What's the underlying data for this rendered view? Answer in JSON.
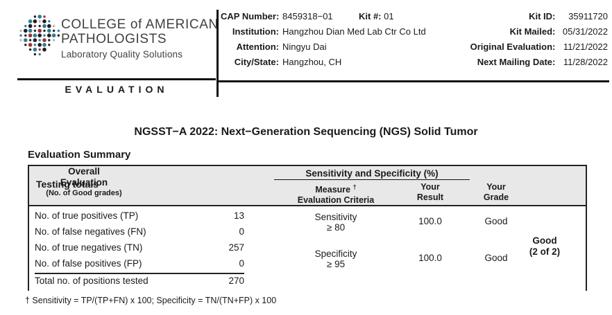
{
  "logo": {
    "icon": "cap-dots-logo",
    "org_line1": "COLLEGE of AMERICAN",
    "org_line2": "PATHOLOGISTS",
    "tagline": "Laboratory Quality Solutions"
  },
  "report_type": "EVALUATION",
  "header_info": {
    "left": [
      {
        "label": "CAP Number:",
        "value": "8459318−01"
      },
      {
        "label": "Institution:",
        "value": "Hangzhou Dian Med Lab Ctr Co Ltd"
      },
      {
        "label": "Attention:",
        "value": "Ningyu Dai"
      },
      {
        "label": "City/State:",
        "value": "Hangzhou, CH"
      }
    ],
    "kit_number": {
      "label": "Kit #:",
      "value": "01"
    },
    "right": [
      {
        "label": "Kit ID:",
        "value": "35911720"
      },
      {
        "label": "Kit Mailed:",
        "value": "05/31/2022"
      },
      {
        "label": "Original Evaluation:",
        "value": "11/21/2022"
      },
      {
        "label": "Next Mailing Date:",
        "value": "11/28/2022"
      }
    ]
  },
  "title": "NGSST−A 2022: Next−Generation Sequencing (NGS) Solid Tumor",
  "section_heading": "Evaluation Summary",
  "table": {
    "testing_totals_header": "Testing totals",
    "group_header": "Sensitivity and Specificity (%)",
    "columns": {
      "measure_line1": "Measure",
      "measure_dagger": "†",
      "measure_line2": "Evaluation Criteria",
      "result_line1": "Your",
      "result_line2": "Result",
      "grade_line1": "Your",
      "grade_line2": "Grade",
      "overall_line1": "Overall",
      "overall_line2": "Evaluation",
      "overall_line3": "(No. of Good grades)"
    },
    "totals": [
      {
        "label": "No. of true positives (TP)",
        "value": "13"
      },
      {
        "label": "No. of false negatives (FN)",
        "value": "0"
      },
      {
        "label": "No. of true negatives (TN)",
        "value": "257"
      },
      {
        "label": "No. of false positives (FP)",
        "value": "0"
      }
    ],
    "total_row": {
      "label": "Total no. of positions tested",
      "value": "270"
    },
    "measures": [
      {
        "name": "Sensitivity",
        "criteria": "≥ 80",
        "result": "100.0",
        "grade": "Good"
      },
      {
        "name": "Specificity",
        "criteria": "≥ 95",
        "result": "100.0",
        "grade": "Good"
      }
    ],
    "overall": {
      "line1": "Good",
      "line2": "(2 of 2)"
    }
  },
  "footnote": "† Sensitivity = TP/(TP+FN) x 100; Specificity = TN/(TN+FP) x 100",
  "colors": {
    "text": "#1a1a1a",
    "rule": "#111111",
    "table_header_bg": "#e8e8e8",
    "logo_teal": "#2e7d95",
    "logo_red": "#9b3333",
    "logo_black": "#231f20",
    "logo_gray": "#b5b5b5"
  }
}
